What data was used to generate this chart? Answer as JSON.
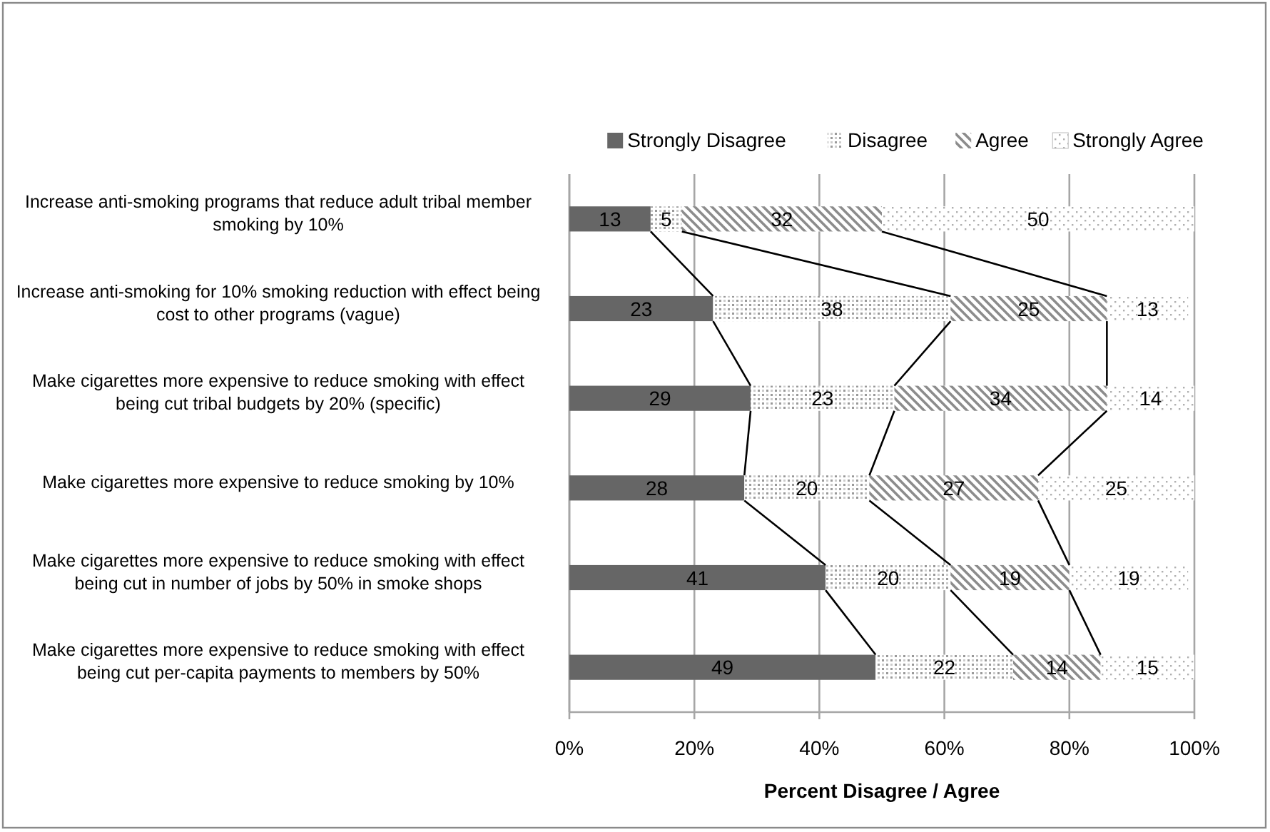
{
  "chart_data": {
    "type": "bar",
    "orientation": "horizontal",
    "stacked": true,
    "xlabel": "Percent Disagree / Agree",
    "categories": [
      "Increase anti-smoking programs that reduce adult tribal member smoking by 10%",
      "Increase anti-smoking for 10% smoking reduction with effect being cost to other programs (vague)",
      "Make cigarettes more expensive to reduce smoking with effect being  cut tribal budgets by 20% (specific)",
      "Make cigarettes more expensive to reduce smoking by 10%",
      "Make cigarettes more expensive to reduce smoking with effect being cut in number of jobs by 50% in smoke shops",
      "Make cigarettes more expensive to reduce smoking with effect being cut per-capita payments to members by 50%"
    ],
    "series": [
      {
        "name": "Strongly Disagree",
        "color": "#666666",
        "values": [
          13,
          23,
          29,
          28,
          41,
          49
        ]
      },
      {
        "name": "Disagree",
        "color": "#9a9a9a",
        "values": [
          5,
          38,
          23,
          20,
          20,
          22
        ]
      },
      {
        "name": "Agree",
        "color": "#8c8c8c",
        "values": [
          32,
          25,
          34,
          27,
          19,
          14
        ]
      },
      {
        "name": "Strongly Agree",
        "color": "#b0b0b0",
        "values": [
          50,
          13,
          14,
          25,
          19,
          15
        ]
      }
    ],
    "xlim": [
      0,
      100
    ],
    "xticks": [
      {
        "value": 0,
        "label": "0%"
      },
      {
        "value": 20,
        "label": "20%"
      },
      {
        "value": 40,
        "label": "40%"
      },
      {
        "value": 60,
        "label": "60%"
      },
      {
        "value": 80,
        "label": "80%"
      },
      {
        "value": 100,
        "label": "100%"
      }
    ],
    "grid": "x",
    "legend": "top",
    "data_labels": true
  }
}
